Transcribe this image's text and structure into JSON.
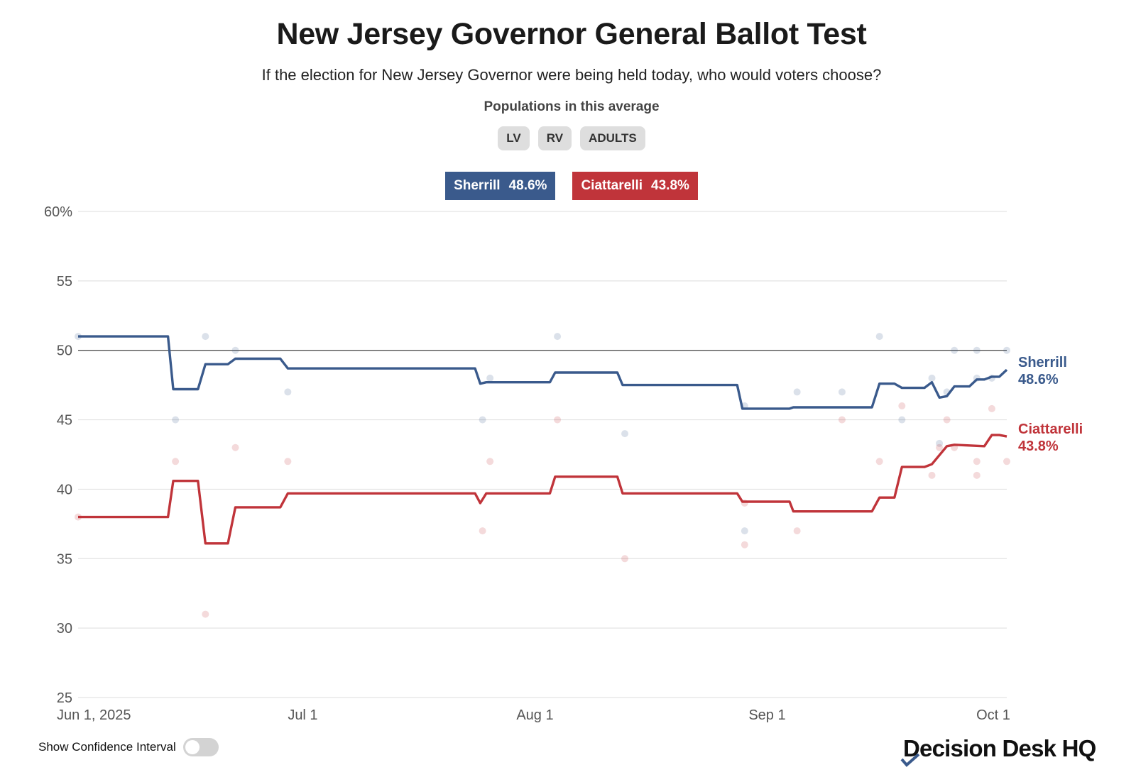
{
  "header": {
    "title": "New Jersey Governor General Ballot Test",
    "subtitle": "If the election for New Jersey Governor were being held today, who would voters choose?",
    "populations_label": "Populations in this average",
    "populations": [
      "LV",
      "RV",
      "ADULTS"
    ]
  },
  "legend": [
    {
      "name": "Sherrill",
      "value": "48.6%",
      "color": "#3a5a8c"
    },
    {
      "name": "Ciattarelli",
      "value": "43.8%",
      "color": "#c0343a"
    }
  ],
  "chart_data": {
    "type": "line",
    "title": "New Jersey Governor General Ballot Test",
    "y_unit": "percent",
    "ylim": [
      25,
      60
    ],
    "y_ticks": [
      25,
      30,
      35,
      40,
      45,
      50,
      55,
      60
    ],
    "y_tick_labels": [
      "25",
      "30",
      "35",
      "40",
      "45",
      "50",
      "55",
      "60%"
    ],
    "x_domain_days": [
      0,
      124
    ],
    "x_ticks": [
      {
        "day": 0,
        "label": "Jun 1, 2025"
      },
      {
        "day": 30,
        "label": "Jul 1"
      },
      {
        "day": 61,
        "label": "Aug 1"
      },
      {
        "day": 92,
        "label": "Sep 1"
      },
      {
        "day": 122,
        "label": "Oct 1"
      }
    ],
    "reference_line": 50,
    "series": [
      {
        "name": "Sherrill",
        "color": "#3a5a8c",
        "end_label_name": "Sherrill",
        "end_label_value": "48.6%",
        "points": [
          [
            0,
            51
          ],
          [
            12,
            51
          ],
          [
            12.7,
            47.2
          ],
          [
            16,
            47.2
          ],
          [
            17,
            49
          ],
          [
            20,
            49
          ],
          [
            21,
            49.4
          ],
          [
            27,
            49.4
          ],
          [
            28,
            48.7
          ],
          [
            53,
            48.7
          ],
          [
            53.7,
            47.6
          ],
          [
            54.5,
            47.7
          ],
          [
            63,
            47.7
          ],
          [
            63.7,
            48.4
          ],
          [
            72,
            48.4
          ],
          [
            72.7,
            47.5
          ],
          [
            88,
            47.5
          ],
          [
            88.7,
            45.8
          ],
          [
            95,
            45.8
          ],
          [
            95.5,
            45.9
          ],
          [
            106,
            45.9
          ],
          [
            107,
            47.6
          ],
          [
            109,
            47.6
          ],
          [
            110,
            47.3
          ],
          [
            113,
            47.3
          ],
          [
            114,
            47.7
          ],
          [
            115,
            46.6
          ],
          [
            116,
            46.7
          ],
          [
            117,
            47.4
          ],
          [
            119,
            47.4
          ],
          [
            120,
            47.9
          ],
          [
            121,
            47.9
          ],
          [
            122,
            48.1
          ],
          [
            123,
            48.1
          ],
          [
            124,
            48.6
          ]
        ],
        "polls": [
          [
            0,
            51
          ],
          [
            13,
            45
          ],
          [
            17,
            51
          ],
          [
            21,
            50
          ],
          [
            28,
            47
          ],
          [
            54,
            45
          ],
          [
            55,
            48
          ],
          [
            64,
            51
          ],
          [
            73,
            44
          ],
          [
            89,
            46
          ],
          [
            89,
            37
          ],
          [
            96,
            47
          ],
          [
            102,
            47
          ],
          [
            107,
            51
          ],
          [
            110,
            45
          ],
          [
            114,
            48
          ],
          [
            115,
            43.3
          ],
          [
            116,
            47
          ],
          [
            117,
            50
          ],
          [
            120,
            50
          ],
          [
            120,
            48
          ],
          [
            122,
            48
          ],
          [
            124,
            50
          ]
        ]
      },
      {
        "name": "Ciattarelli",
        "color": "#c0343a",
        "end_label_name": "Ciattarelli",
        "end_label_value": "43.8%",
        "points": [
          [
            0,
            38
          ],
          [
            12,
            38
          ],
          [
            12.7,
            40.6
          ],
          [
            16,
            40.6
          ],
          [
            17,
            36.1
          ],
          [
            20,
            36.1
          ],
          [
            21,
            38.7
          ],
          [
            27,
            38.7
          ],
          [
            28,
            39.7
          ],
          [
            53,
            39.7
          ],
          [
            53.7,
            39
          ],
          [
            54.5,
            39.7
          ],
          [
            63,
            39.7
          ],
          [
            63.7,
            40.9
          ],
          [
            72,
            40.9
          ],
          [
            72.7,
            39.7
          ],
          [
            88,
            39.7
          ],
          [
            88.7,
            39.1
          ],
          [
            95,
            39.1
          ],
          [
            95.5,
            38.4
          ],
          [
            106,
            38.4
          ],
          [
            107,
            39.4
          ],
          [
            109,
            39.4
          ],
          [
            110,
            41.6
          ],
          [
            113,
            41.6
          ],
          [
            114,
            41.8
          ],
          [
            116,
            43.1
          ],
          [
            117,
            43.2
          ],
          [
            121,
            43.1
          ],
          [
            122,
            43.9
          ],
          [
            123,
            43.9
          ],
          [
            124,
            43.8
          ]
        ],
        "polls": [
          [
            0,
            38
          ],
          [
            13,
            42
          ],
          [
            17,
            31
          ],
          [
            21,
            43
          ],
          [
            28,
            42
          ],
          [
            54,
            37
          ],
          [
            55,
            42
          ],
          [
            64,
            45
          ],
          [
            73,
            35
          ],
          [
            89,
            39
          ],
          [
            89,
            36
          ],
          [
            96,
            37
          ],
          [
            102,
            45
          ],
          [
            107,
            42
          ],
          [
            110,
            46
          ],
          [
            114,
            41
          ],
          [
            115,
            43
          ],
          [
            116,
            45
          ],
          [
            117,
            43
          ],
          [
            120,
            42
          ],
          [
            120,
            41
          ],
          [
            122,
            45.8
          ],
          [
            124,
            42
          ]
        ]
      }
    ]
  },
  "footer": {
    "confidence_toggle_label": "Show Confidence Interval",
    "confidence_on": false,
    "brand": "Decision Desk HQ"
  }
}
